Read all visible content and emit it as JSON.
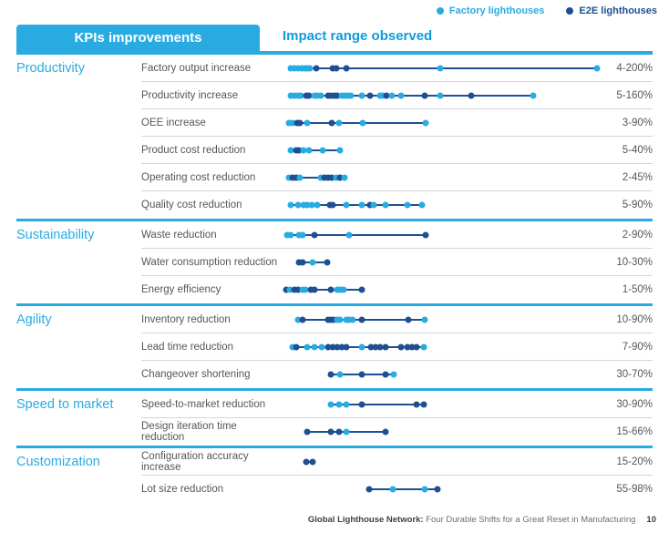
{
  "legend": {
    "factory_label": "Factory lighthouses",
    "e2e_label": "E2E lighthouses"
  },
  "header": {
    "tab_label": "KPIs improvements",
    "title": "Impact range observed"
  },
  "footer": {
    "bold_text": "Global Lighthouse Network:",
    "regular_text": " Four Durable Shifts for a Great Reset in Manufacturing",
    "page_number": "10"
  },
  "colors": {
    "factory_dot": "#29ABE2",
    "e2e_dot": "#1D4F91",
    "range_line": "#1D4F91",
    "accent_blue": "#29ABE2",
    "title_blue": "#0D9DDB",
    "label_gray": "#55565A"
  },
  "chart_data": {
    "type": "scatter",
    "title": "Impact range observed",
    "legend_position": "top-right",
    "series_legend": [
      "Factory lighthouses",
      "E2E lighthouses"
    ],
    "dot_note": "dots = [position as % of track width, 'f'=factory|'e'=e2e]",
    "sections": [
      {
        "name": "Productivity",
        "rows": [
          {
            "label": "Factory output increase",
            "range": "4-200%",
            "dots": [
              [
                2.6,
                "f"
              ],
              [
                3.7,
                "f"
              ],
              [
                4.9,
                "f"
              ],
              [
                6,
                "f"
              ],
              [
                6.9,
                "f"
              ],
              [
                7.7,
                "f"
              ],
              [
                8.6,
                "f"
              ],
              [
                10.6,
                "e"
              ],
              [
                15.7,
                "e"
              ],
              [
                16.9,
                "e"
              ],
              [
                20,
                "e"
              ],
              [
                49.4,
                "f"
              ],
              [
                98.6,
                "f"
              ]
            ]
          },
          {
            "label": "Productivity increase",
            "range": "5-160%",
            "dots": [
              [
                2.6,
                "f"
              ],
              [
                3.7,
                "f"
              ],
              [
                4.9,
                "f"
              ],
              [
                5.7,
                "f"
              ],
              [
                7.4,
                "e"
              ],
              [
                8.3,
                "e"
              ],
              [
                10,
                "f"
              ],
              [
                10.9,
                "f"
              ],
              [
                12,
                "f"
              ],
              [
                14.3,
                "e"
              ],
              [
                15.1,
                "e"
              ],
              [
                16.3,
                "e"
              ],
              [
                17.1,
                "e"
              ],
              [
                18.6,
                "f"
              ],
              [
                19.4,
                "f"
              ],
              [
                20.6,
                "f"
              ],
              [
                21.4,
                "f"
              ],
              [
                24.9,
                "f"
              ],
              [
                27.4,
                "e"
              ],
              [
                30.6,
                "f"
              ],
              [
                31.4,
                "f"
              ],
              [
                32.6,
                "e"
              ],
              [
                34.3,
                "f"
              ],
              [
                37.1,
                "f"
              ],
              [
                44.6,
                "e"
              ],
              [
                49.4,
                "f"
              ],
              [
                59.1,
                "e"
              ],
              [
                78.6,
                "f"
              ]
            ]
          },
          {
            "label": "OEE increase",
            "range": "3-90%",
            "dots": [
              [
                2,
                "f"
              ],
              [
                3.1,
                "f"
              ],
              [
                4.6,
                "e"
              ],
              [
                5.4,
                "e"
              ],
              [
                7.7,
                "f"
              ],
              [
                15.4,
                "e"
              ],
              [
                17.7,
                "f"
              ],
              [
                25.1,
                "f"
              ],
              [
                44.9,
                "f"
              ]
            ]
          },
          {
            "label": "Product cost reduction",
            "range": "5-40%",
            "dots": [
              [
                2.6,
                "f"
              ],
              [
                4.3,
                "e"
              ],
              [
                5.1,
                "e"
              ],
              [
                6.6,
                "f"
              ],
              [
                8.3,
                "f"
              ],
              [
                12.6,
                "f"
              ],
              [
                18,
                "f"
              ]
            ]
          },
          {
            "label": "Operating cost reduction",
            "range": "2-45%",
            "dots": [
              [
                2,
                "f"
              ],
              [
                3.1,
                "e"
              ],
              [
                4.3,
                "e"
              ],
              [
                5.4,
                "f"
              ],
              [
                12,
                "f"
              ],
              [
                13.1,
                "e"
              ],
              [
                14.3,
                "e"
              ],
              [
                15.4,
                "e"
              ],
              [
                16.9,
                "f"
              ],
              [
                18,
                "e"
              ],
              [
                19.4,
                "f"
              ]
            ]
          },
          {
            "label": "Quality cost reduction",
            "range": "5-90%",
            "dots": [
              [
                2.6,
                "f"
              ],
              [
                4.9,
                "f"
              ],
              [
                6.6,
                "f"
              ],
              [
                7.7,
                "f"
              ],
              [
                9.1,
                "f"
              ],
              [
                10.9,
                "f"
              ],
              [
                14.9,
                "e"
              ],
              [
                15.7,
                "e"
              ],
              [
                20,
                "f"
              ],
              [
                24.9,
                "f"
              ],
              [
                27.4,
                "e"
              ],
              [
                28.6,
                "f"
              ],
              [
                32.3,
                "f"
              ],
              [
                39.1,
                "f"
              ],
              [
                43.7,
                "f"
              ]
            ]
          }
        ]
      },
      {
        "name": "Sustainability",
        "rows": [
          {
            "label": "Waste reduction",
            "range": "2-90%",
            "dots": [
              [
                1.4,
                "f"
              ],
              [
                2.6,
                "f"
              ],
              [
                5.1,
                "f"
              ],
              [
                6.3,
                "f"
              ],
              [
                10,
                "e"
              ],
              [
                20.9,
                "f"
              ],
              [
                44.9,
                "e"
              ]
            ]
          },
          {
            "label": "Water consumption reduction",
            "range": "10-30%",
            "dots": [
              [
                5.1,
                "e"
              ],
              [
                6.3,
                "e"
              ],
              [
                9.4,
                "f"
              ],
              [
                14,
                "e"
              ]
            ]
          },
          {
            "label": "Energy efficiency",
            "range": "1-50%",
            "dots": [
              [
                1.1,
                "e"
              ],
              [
                2.3,
                "f"
              ],
              [
                3.7,
                "e"
              ],
              [
                4.9,
                "e"
              ],
              [
                6.3,
                "f"
              ],
              [
                7.1,
                "f"
              ],
              [
                8.9,
                "e"
              ],
              [
                10,
                "e"
              ],
              [
                15.1,
                "e"
              ],
              [
                17.1,
                "f"
              ],
              [
                18,
                "f"
              ],
              [
                19.1,
                "f"
              ],
              [
                24.9,
                "e"
              ]
            ]
          }
        ]
      },
      {
        "name": "Agility",
        "rows": [
          {
            "label": "Inventory reduction",
            "range": "10-90%",
            "dots": [
              [
                4.9,
                "f"
              ],
              [
                6.3,
                "e"
              ],
              [
                14.3,
                "e"
              ],
              [
                15.1,
                "e"
              ],
              [
                16,
                "e"
              ],
              [
                17.1,
                "f"
              ],
              [
                18,
                "f"
              ],
              [
                20,
                "f"
              ],
              [
                20.9,
                "f"
              ],
              [
                22,
                "f"
              ],
              [
                24.9,
                "e"
              ],
              [
                39.4,
                "e"
              ],
              [
                44.6,
                "f"
              ]
            ]
          },
          {
            "label": "Lead time reduction",
            "range": "7-90%",
            "dots": [
              [
                3.1,
                "f"
              ],
              [
                4.3,
                "e"
              ],
              [
                7.7,
                "f"
              ],
              [
                10,
                "f"
              ],
              [
                12.3,
                "f"
              ],
              [
                14.3,
                "e"
              ],
              [
                15.7,
                "e"
              ],
              [
                17.1,
                "e"
              ],
              [
                18.6,
                "e"
              ],
              [
                20,
                "e"
              ],
              [
                24.9,
                "f"
              ],
              [
                27.7,
                "e"
              ],
              [
                29.1,
                "e"
              ],
              [
                30.6,
                "e"
              ],
              [
                32.3,
                "e"
              ],
              [
                37.1,
                "e"
              ],
              [
                39.1,
                "e"
              ],
              [
                40.6,
                "e"
              ],
              [
                42,
                "e"
              ],
              [
                44.3,
                "f"
              ]
            ]
          },
          {
            "label": "Changeover shortening",
            "range": "30-70%",
            "dots": [
              [
                15.1,
                "e"
              ],
              [
                18,
                "f"
              ],
              [
                24.9,
                "e"
              ],
              [
                32.3,
                "e"
              ],
              [
                34.9,
                "f"
              ]
            ]
          }
        ]
      },
      {
        "name": "Speed to market",
        "rows": [
          {
            "label": "Speed-to-market reduction",
            "range": "30-90%",
            "dots": [
              [
                15.1,
                "f"
              ],
              [
                17.7,
                "f"
              ],
              [
                20,
                "f"
              ],
              [
                24.9,
                "e"
              ],
              [
                42,
                "e"
              ],
              [
                44.3,
                "e"
              ]
            ]
          },
          {
            "label": "Design iteration time reduction",
            "range": "15-66%",
            "dots": [
              [
                7.7,
                "e"
              ],
              [
                15.1,
                "e"
              ],
              [
                17.7,
                "e"
              ],
              [
                20,
                "f"
              ],
              [
                32.3,
                "e"
              ]
            ]
          }
        ]
      },
      {
        "name": "Customization",
        "rows": [
          {
            "label": "Configuration accuracy increase",
            "range": "15-20%",
            "dots": [
              [
                7.4,
                "e"
              ],
              [
                9.4,
                "e"
              ]
            ]
          },
          {
            "label": "Lot size reduction",
            "range": "55-98%",
            "dots": [
              [
                27.1,
                "e"
              ],
              [
                34.6,
                "f"
              ],
              [
                44.6,
                "f"
              ],
              [
                48.6,
                "e"
              ]
            ]
          }
        ]
      }
    ]
  }
}
